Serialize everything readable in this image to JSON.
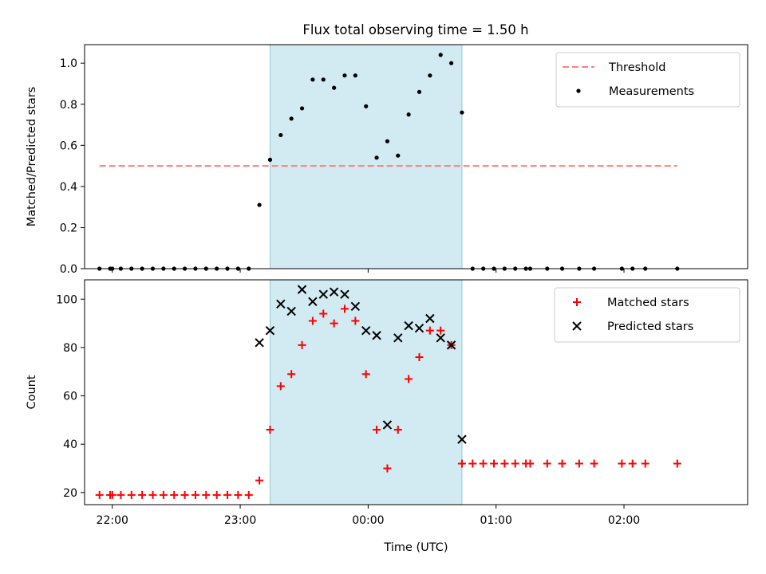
{
  "title": "Flux total observing time = 1.50 h",
  "colors": {
    "span": "#add8e6",
    "threshold": "#ff7f7f",
    "matched": "#ff0000",
    "predicted": "#000000",
    "measurements": "#000000"
  },
  "chart_data": [
    {
      "type": "scatter",
      "panel": "top",
      "ylabel": "Matched/Predicted stars",
      "xlabel": "",
      "ylim": [
        0,
        1.09
      ],
      "yticks": [
        "0.0",
        "0.2",
        "0.4",
        "0.6",
        "0.8",
        "1.0"
      ],
      "xlim": [
        "21:47",
        "02:58"
      ],
      "legend_position": "top-right",
      "legend": [
        "Threshold",
        "Measurements"
      ],
      "shaded_span": [
        "23:14",
        "00:44"
      ],
      "threshold": {
        "name": "Threshold",
        "value": 0.5,
        "x_range": [
          "21:54",
          "02:25"
        ]
      },
      "series": [
        {
          "name": "Measurements",
          "marker": "dot",
          "points": [
            [
              "21:54",
              0
            ],
            [
              "21:59",
              0
            ],
            [
              "22:00",
              0
            ],
            [
              "22:04",
              0
            ],
            [
              "22:09",
              0
            ],
            [
              "22:14",
              0
            ],
            [
              "22:19",
              0
            ],
            [
              "22:24",
              0
            ],
            [
              "22:29",
              0
            ],
            [
              "22:34",
              0
            ],
            [
              "22:39",
              0
            ],
            [
              "22:44",
              0
            ],
            [
              "22:49",
              0
            ],
            [
              "22:54",
              0
            ],
            [
              "22:59",
              0
            ],
            [
              "23:04",
              0
            ],
            [
              "23:09",
              0.31
            ],
            [
              "23:14",
              0.53
            ],
            [
              "23:19",
              0.65
            ],
            [
              "23:24",
              0.73
            ],
            [
              "23:29",
              0.78
            ],
            [
              "23:34",
              0.92
            ],
            [
              "23:39",
              0.92
            ],
            [
              "23:44",
              0.88
            ],
            [
              "23:49",
              0.94
            ],
            [
              "23:54",
              0.94
            ],
            [
              "23:59",
              0.79
            ],
            [
              "00:04",
              0.54
            ],
            [
              "00:09",
              0.62
            ],
            [
              "00:14",
              0.55
            ],
            [
              "00:19",
              0.75
            ],
            [
              "00:24",
              0.86
            ],
            [
              "00:29",
              0.94
            ],
            [
              "00:34",
              1.04
            ],
            [
              "00:39",
              1.0
            ],
            [
              "00:44",
              0.76
            ],
            [
              "00:49",
              0
            ],
            [
              "00:54",
              0
            ],
            [
              "00:59",
              0
            ],
            [
              "01:04",
              0
            ],
            [
              "01:09",
              0
            ],
            [
              "01:14",
              0
            ],
            [
              "01:16",
              0
            ],
            [
              "01:24",
              0
            ],
            [
              "01:31",
              0
            ],
            [
              "01:39",
              0
            ],
            [
              "01:46",
              0
            ],
            [
              "01:59",
              0
            ],
            [
              "02:04",
              0
            ],
            [
              "02:10",
              0
            ],
            [
              "02:25",
              0
            ]
          ]
        }
      ]
    },
    {
      "type": "scatter",
      "panel": "bottom",
      "ylabel": "Count",
      "xlabel": "Time (UTC)",
      "ylim": [
        15,
        108
      ],
      "yticks": [
        "20",
        "40",
        "60",
        "80",
        "100"
      ],
      "xlim": [
        "21:47",
        "02:58"
      ],
      "xticks": [
        "22:00",
        "23:00",
        "00:00",
        "01:00",
        "02:00"
      ],
      "legend_position": "top-right",
      "legend": [
        "Matched stars",
        "Predicted stars"
      ],
      "shaded_span": [
        "23:14",
        "00:44"
      ],
      "series": [
        {
          "name": "Matched stars",
          "marker": "plus",
          "points": [
            [
              "21:54",
              19
            ],
            [
              "21:59",
              19
            ],
            [
              "22:00",
              19
            ],
            [
              "22:04",
              19
            ],
            [
              "22:09",
              19
            ],
            [
              "22:14",
              19
            ],
            [
              "22:19",
              19
            ],
            [
              "22:24",
              19
            ],
            [
              "22:29",
              19
            ],
            [
              "22:34",
              19
            ],
            [
              "22:39",
              19
            ],
            [
              "22:44",
              19
            ],
            [
              "22:49",
              19
            ],
            [
              "22:54",
              19
            ],
            [
              "22:59",
              19
            ],
            [
              "23:04",
              19
            ],
            [
              "23:09",
              25
            ],
            [
              "23:14",
              46
            ],
            [
              "23:19",
              64
            ],
            [
              "23:24",
              69
            ],
            [
              "23:29",
              81
            ],
            [
              "23:34",
              91
            ],
            [
              "23:39",
              94
            ],
            [
              "23:44",
              90
            ],
            [
              "23:49",
              96
            ],
            [
              "23:54",
              91
            ],
            [
              "23:59",
              69
            ],
            [
              "00:04",
              46
            ],
            [
              "00:09",
              30
            ],
            [
              "00:14",
              46
            ],
            [
              "00:19",
              67
            ],
            [
              "00:24",
              76
            ],
            [
              "00:29",
              87
            ],
            [
              "00:34",
              87
            ],
            [
              "00:39",
              81
            ],
            [
              "00:44",
              32
            ],
            [
              "00:49",
              32
            ],
            [
              "00:54",
              32
            ],
            [
              "00:59",
              32
            ],
            [
              "01:04",
              32
            ],
            [
              "01:09",
              32
            ],
            [
              "01:14",
              32
            ],
            [
              "01:16",
              32
            ],
            [
              "01:24",
              32
            ],
            [
              "01:31",
              32
            ],
            [
              "01:39",
              32
            ],
            [
              "01:46",
              32
            ],
            [
              "01:59",
              32
            ],
            [
              "02:04",
              32
            ],
            [
              "02:10",
              32
            ],
            [
              "02:25",
              32
            ]
          ]
        },
        {
          "name": "Predicted stars",
          "marker": "x",
          "points": [
            [
              "23:09",
              82
            ],
            [
              "23:14",
              87
            ],
            [
              "23:19",
              98
            ],
            [
              "23:24",
              95
            ],
            [
              "23:29",
              104
            ],
            [
              "23:34",
              99
            ],
            [
              "23:39",
              102
            ],
            [
              "23:44",
              103
            ],
            [
              "23:49",
              102
            ],
            [
              "23:54",
              97
            ],
            [
              "23:59",
              87
            ],
            [
              "00:04",
              85
            ],
            [
              "00:09",
              48
            ],
            [
              "00:14",
              84
            ],
            [
              "00:19",
              89
            ],
            [
              "00:24",
              88
            ],
            [
              "00:29",
              92
            ],
            [
              "00:34",
              84
            ],
            [
              "00:39",
              81
            ],
            [
              "00:44",
              42
            ]
          ]
        }
      ]
    }
  ]
}
